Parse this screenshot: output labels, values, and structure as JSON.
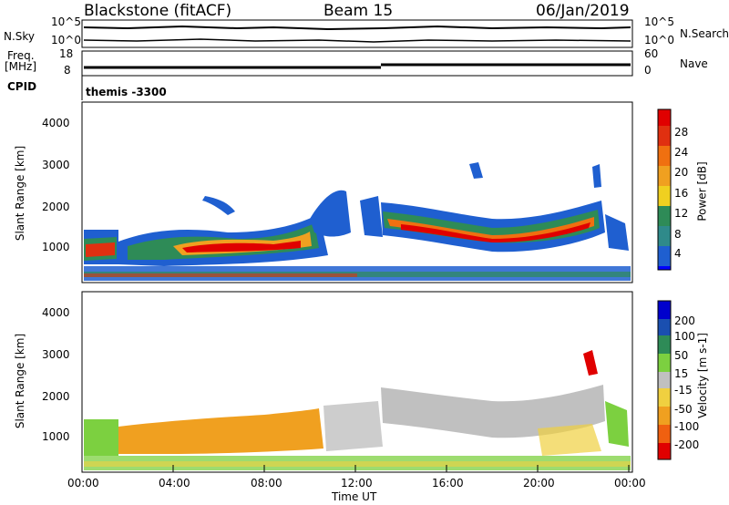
{
  "header": {
    "title": "Blackstone (fitACF)",
    "beam": "Beam 15",
    "date": "06/Jan/2019"
  },
  "chart_data": [
    {
      "type": "line",
      "name": "noise-panel",
      "left_label": "N.Sky",
      "right_label": "N.Search",
      "left_ticks": [
        "10^5",
        "10^0"
      ],
      "right_ticks": [
        "10^5",
        "10^0"
      ]
    },
    {
      "type": "line",
      "name": "freq-nave-panel",
      "left_label": "Freq.",
      "left_unit": "[MHz]",
      "right_label": "Nave",
      "left_ticks": [
        "18",
        "8"
      ],
      "right_ticks": [
        "60",
        "0"
      ],
      "left_ylim": [
        8,
        18
      ],
      "right_ylim": [
        0,
        60
      ]
    },
    {
      "type": "table",
      "name": "cpid-panel",
      "label": "CPID",
      "value": "themis -3300"
    },
    {
      "type": "heatmap",
      "name": "power-panel",
      "ylabel": "Slant Range [km]",
      "yticks": [
        "4000",
        "3000",
        "2000",
        "1000"
      ],
      "ylim": [
        180,
        4600
      ],
      "colorbar_label": "Power [dB]",
      "colorbar_ticks": [
        "28",
        "24",
        "20",
        "16",
        "12",
        "8",
        "4"
      ],
      "colorbar_colors": [
        "#0000ff",
        "#1f5fd0",
        "#2f8a8a",
        "#2e8b57",
        "#7cc33a",
        "#f0d020",
        "#f0a020",
        "#f07010",
        "#e03010",
        "#e00000"
      ]
    },
    {
      "type": "heatmap",
      "name": "velocity-panel",
      "ylabel": "Slant Range [km]",
      "yticks": [
        "4000",
        "3000",
        "2000",
        "1000"
      ],
      "ylim": [
        180,
        4600
      ],
      "colorbar_label": "Velocity [m s-1]",
      "colorbar_ticks": [
        "200",
        "100",
        "50",
        "15",
        "-15",
        "-50",
        "-100",
        "-200"
      ],
      "colorbar_colors": [
        "#0000cc",
        "#1a4fb0",
        "#2e8b57",
        "#7cd040",
        "#c0c0c0",
        "#f0d040",
        "#f0a020",
        "#f06010",
        "#e00000"
      ],
      "xlabel": "Time UT",
      "xticks": [
        "00:00",
        "04:00",
        "08:00",
        "12:00",
        "16:00",
        "20:00",
        "00:00"
      ],
      "xlim": [
        0,
        24
      ]
    }
  ]
}
